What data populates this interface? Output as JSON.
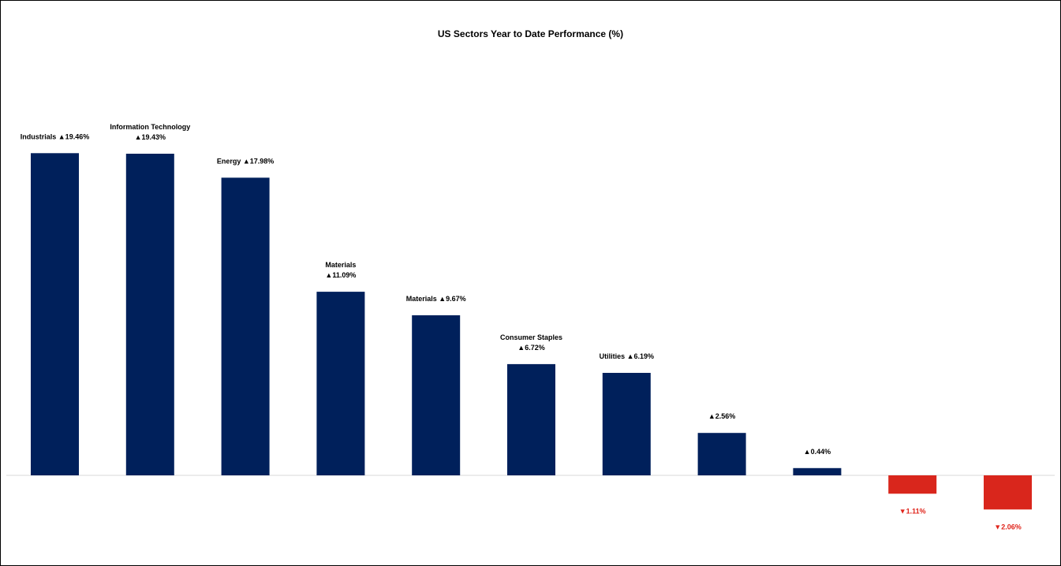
{
  "chart_data": {
    "type": "bar",
    "title": "US Sectors Year to Date Performance (%)",
    "xlabel": "",
    "ylabel": "",
    "ylim": [
      -2.5,
      20
    ],
    "grid": false,
    "legend": "none",
    "values": [
      19.46,
      19.43,
      17.98,
      11.09,
      9.67,
      6.72,
      6.19,
      2.56,
      0.44,
      -1.11,
      -2.06
    ],
    "label_lines": [
      [
        "Industrials ▲19.46%"
      ],
      [
        "Information Technology",
        "▲19.43%"
      ],
      [
        "Energy ▲17.98%"
      ],
      [
        "Materials",
        "▲11.09%"
      ],
      [
        "Materials ▲9.67%"
      ],
      [
        "Consumer Staples",
        "▲6.72%"
      ],
      [
        "Utilities  ▲6.19%"
      ],
      [
        "▲2.56%"
      ],
      [
        "▲0.44%"
      ],
      [
        "▼1.11%"
      ],
      [
        "▼2.06%"
      ]
    ],
    "colors": {
      "positive": "#00205b",
      "negative": "#d9261c",
      "positive_label": "#000000",
      "negative_label": "#e0241b",
      "axis": "#d9d9d9"
    }
  }
}
